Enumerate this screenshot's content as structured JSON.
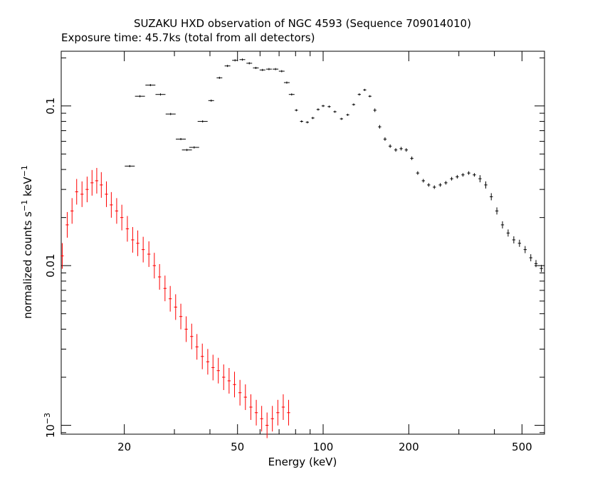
{
  "chart_data": {
    "type": "scatter",
    "title": "SUZAKU HXD observation of NGC 4593 (Sequence 709014010)",
    "subtitle": "Exposure time: 45.7ks (total from all detectors)",
    "xlabel": "Energy (keV)",
    "ylabel_parts": {
      "base": "normalized counts s",
      "exp1": "−1",
      "mid": " keV",
      "exp2": "−1"
    },
    "x_scale": "log",
    "y_scale": "log",
    "xlim": [
      12,
      600
    ],
    "ylim": [
      0.00088,
      0.22
    ],
    "grid": false,
    "x_ticks": [
      {
        "value": 20,
        "label": "20"
      },
      {
        "value": 50,
        "label": "50"
      },
      {
        "value": 100,
        "label": "100"
      },
      {
        "value": 200,
        "label": "200"
      },
      {
        "value": 500,
        "label": "500"
      }
    ],
    "y_ticks": [
      {
        "value": 0.1,
        "label": "0.1"
      },
      {
        "value": 0.01,
        "label": "0.01"
      }
    ],
    "y_tick_1e3": {
      "value": 0.001,
      "base": "10",
      "exp": "−3"
    },
    "series": [
      {
        "color": "#000000",
        "points": [
          [
            20.9,
            0.042,
            0.6
          ],
          [
            22.7,
            0.115,
            0.6
          ],
          [
            24.7,
            0.135,
            0.6
          ],
          [
            26.8,
            0.118,
            0.6
          ],
          [
            29.1,
            0.089,
            0.5
          ],
          [
            31.6,
            0.062,
            0.5
          ],
          [
            33.2,
            0.053,
            0.5
          ],
          [
            35.2,
            0.055,
            0.5
          ],
          [
            37.7,
            0.08,
            0.5
          ],
          [
            40.4,
            0.108,
            0.5
          ],
          [
            43.2,
            0.15,
            0.5
          ],
          [
            46.1,
            0.178,
            0.5
          ],
          [
            49.0,
            0.193,
            0.5
          ],
          [
            52.0,
            0.195,
            0.5
          ],
          [
            55.0,
            0.185,
            0.5
          ],
          [
            58.0,
            0.173,
            0.5
          ],
          [
            61.2,
            0.168,
            0.5
          ],
          [
            64.5,
            0.17,
            0.5
          ],
          [
            68.0,
            0.17,
            0.5
          ],
          [
            71.5,
            0.165,
            0.5
          ],
          [
            74.5,
            0.14,
            0.5
          ],
          [
            77.5,
            0.118,
            0.5
          ],
          [
            80.5,
            0.094,
            0.5
          ],
          [
            84.0,
            0.08,
            0.5
          ],
          [
            88.0,
            0.079,
            0.5
          ],
          [
            92.0,
            0.084,
            0.5
          ],
          [
            96.0,
            0.095,
            0.5
          ],
          [
            100,
            0.1,
            0.5
          ],
          [
            105,
            0.099,
            0.5
          ],
          [
            110,
            0.092,
            0.5
          ],
          [
            116,
            0.083,
            0.5
          ],
          [
            122,
            0.088,
            0.5
          ],
          [
            128,
            0.102,
            0.5
          ],
          [
            134,
            0.118,
            0.5
          ],
          [
            140,
            0.126,
            0.5
          ],
          [
            146,
            0.115,
            0.5
          ],
          [
            152,
            0.094,
            0.5
          ],
          [
            158,
            0.074,
            0.5
          ],
          [
            165,
            0.062,
            0.5
          ],
          [
            172,
            0.056,
            0.5
          ],
          [
            180,
            0.053,
            0.5
          ],
          [
            188,
            0.054,
            0.5
          ],
          [
            196,
            0.053,
            0.5
          ],
          [
            205,
            0.047,
            0.5
          ],
          [
            215,
            0.038,
            0.5
          ],
          [
            225,
            0.034,
            0.5
          ],
          [
            235,
            0.032,
            0.5
          ],
          [
            246,
            0.031,
            0.5
          ],
          [
            258,
            0.032,
            0.5
          ],
          [
            270,
            0.033,
            0.5
          ],
          [
            283,
            0.035,
            0.5
          ],
          [
            296,
            0.036,
            0.5
          ],
          [
            310,
            0.037,
            0.5
          ],
          [
            325,
            0.038,
            0.5
          ],
          [
            340,
            0.037,
            0.5
          ],
          [
            356,
            0.035,
            0.5
          ],
          [
            373,
            0.032,
            0.5
          ],
          [
            390,
            0.027,
            0.5
          ],
          [
            408,
            0.022,
            0.5
          ],
          [
            427,
            0.018,
            0.5
          ],
          [
            447,
            0.016,
            0.5
          ],
          [
            468,
            0.0145,
            0.5
          ],
          [
            490,
            0.0138,
            0.5
          ],
          [
            513,
            0.0126,
            0.5
          ],
          [
            537,
            0.0112,
            0.5
          ],
          [
            560,
            0.0103,
            0.5
          ],
          [
            585,
            0.0096,
            0.5
          ]
        ]
      },
      {
        "color": "#ff0000",
        "points": [
          [
            12.1,
            0.0115,
            0.25
          ],
          [
            12.6,
            0.018,
            0.25
          ],
          [
            13.1,
            0.022,
            0.25
          ],
          [
            13.6,
            0.029,
            0.25
          ],
          [
            14.2,
            0.028,
            0.25
          ],
          [
            14.8,
            0.03,
            0.25
          ],
          [
            15.4,
            0.033,
            0.25
          ],
          [
            16.0,
            0.034,
            0.25
          ],
          [
            16.6,
            0.032,
            0.25
          ],
          [
            17.3,
            0.028,
            0.25
          ],
          [
            18.0,
            0.024,
            0.25
          ],
          [
            18.8,
            0.022,
            0.25
          ],
          [
            19.6,
            0.02,
            0.25
          ],
          [
            20.5,
            0.017,
            0.25
          ],
          [
            21.4,
            0.0145,
            0.25
          ],
          [
            22.3,
            0.0138,
            0.25
          ],
          [
            23.3,
            0.0126,
            0.25
          ],
          [
            24.4,
            0.0118,
            0.25
          ],
          [
            25.5,
            0.01,
            0.25
          ],
          [
            26.6,
            0.0085,
            0.25
          ],
          [
            27.8,
            0.0072,
            0.25
          ],
          [
            29.0,
            0.0062,
            0.25
          ],
          [
            30.3,
            0.0055,
            0.25
          ],
          [
            31.6,
            0.0048,
            0.25
          ],
          [
            33.0,
            0.004,
            0.25
          ],
          [
            34.5,
            0.0036,
            0.25
          ],
          [
            36.0,
            0.0031,
            0.25
          ],
          [
            37.6,
            0.0027,
            0.25
          ],
          [
            39.3,
            0.0025,
            0.25
          ],
          [
            41.0,
            0.0023,
            0.25
          ],
          [
            42.8,
            0.0022,
            0.25
          ],
          [
            44.7,
            0.002,
            0.25
          ],
          [
            46.7,
            0.0019,
            0.25
          ],
          [
            48.8,
            0.0018,
            0.25
          ],
          [
            51.0,
            0.0016,
            0.25
          ],
          [
            53.3,
            0.0015,
            0.25
          ],
          [
            55.7,
            0.0013,
            0.25
          ],
          [
            58.2,
            0.0012,
            0.25
          ],
          [
            60.8,
            0.0011,
            0.25
          ],
          [
            63.5,
            0.001,
            0.25
          ],
          [
            66.3,
            0.0011,
            0.25
          ],
          [
            69.3,
            0.0012,
            0.25
          ],
          [
            72.4,
            0.0013,
            0.25
          ],
          [
            75.6,
            0.0012,
            0.25
          ]
        ]
      }
    ]
  }
}
